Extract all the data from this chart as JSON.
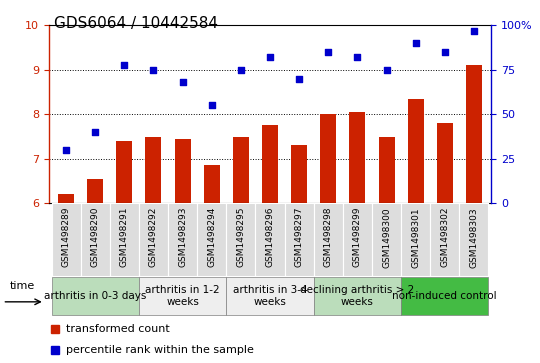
{
  "title": "GDS6064 / 10442584",
  "samples": [
    "GSM1498289",
    "GSM1498290",
    "GSM1498291",
    "GSM1498292",
    "GSM1498293",
    "GSM1498294",
    "GSM1498295",
    "GSM1498296",
    "GSM1498297",
    "GSM1498298",
    "GSM1498299",
    "GSM1498300",
    "GSM1498301",
    "GSM1498302",
    "GSM1498303"
  ],
  "bar_values": [
    6.2,
    6.55,
    7.4,
    7.5,
    7.45,
    6.85,
    7.5,
    7.75,
    7.3,
    8.0,
    8.05,
    7.5,
    8.35,
    7.8,
    9.1
  ],
  "scatter_pct": [
    30,
    40,
    78,
    75,
    68,
    55,
    75,
    82,
    70,
    85,
    82,
    75,
    90,
    85,
    97
  ],
  "bar_color": "#cc2200",
  "scatter_color": "#0000cc",
  "ylim_left": [
    6,
    10
  ],
  "ylim_right": [
    0,
    100
  ],
  "yticks_left": [
    6,
    7,
    8,
    9,
    10
  ],
  "yticks_right": [
    0,
    25,
    50,
    75,
    100
  ],
  "yticklabels_right": [
    "0",
    "25",
    "50",
    "75",
    "100%"
  ],
  "groups": [
    {
      "label": "arthritis in 0-3 days",
      "start": 0,
      "end": 2,
      "color": "#bbddbb"
    },
    {
      "label": "arthritis in 1-2\nweeks",
      "start": 3,
      "end": 5,
      "color": "#eeeeee"
    },
    {
      "label": "arthritis in 3-4\nweeks",
      "start": 6,
      "end": 8,
      "color": "#eeeeee"
    },
    {
      "label": "declining arthritis > 2\nweeks",
      "start": 9,
      "end": 11,
      "color": "#bbddbb"
    },
    {
      "label": "non-induced control",
      "start": 12,
      "end": 14,
      "color": "#44bb44"
    }
  ],
  "legend_bar_label": "transformed count",
  "legend_scatter_label": "percentile rank within the sample",
  "title_fontsize": 11,
  "tick_fontsize": 8,
  "sample_fontsize": 6.5,
  "group_fontsize": 7.5
}
